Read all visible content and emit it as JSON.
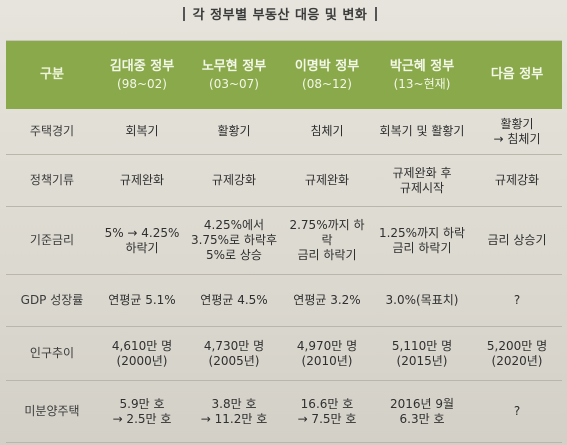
{
  "title": "각 정부별 부동산 대응 및 변화",
  "headers": [
    {
      "name": "구분",
      "sub": ""
    },
    {
      "name": "김대중 정부",
      "sub": "(98~02)"
    },
    {
      "name": "노무현 정부",
      "sub": "(03~07)"
    },
    {
      "name": "이명박 정부",
      "sub": "(08~12)"
    },
    {
      "name": "박근혜 정부",
      "sub": "(13~현재)"
    },
    {
      "name": "다음 정부",
      "sub": ""
    }
  ],
  "rows": [
    {
      "label": "주택경기",
      "cells": [
        "회복기",
        "활황기",
        "침체기",
        "회복기 및 활황기",
        "활황기\n→ 침체기"
      ]
    },
    {
      "label": "정책기류",
      "cells": [
        "규제완화",
        "규제강화",
        "규제완화",
        "규제완화 후\n규제시작",
        "규제강화"
      ]
    },
    {
      "label": "기준금리",
      "cells": [
        "5% → 4.25%\n하락기",
        "4.25%에서\n3.75%로 하락후\n5%로 상승",
        "2.75%까지 하락\n금리 하락기",
        "1.25%까지 하락\n금리 하락기",
        "금리 상승기"
      ]
    },
    {
      "label": "GDP 성장률",
      "cells": [
        "연평균 5.1%",
        "연평균 4.5%",
        "연평균 3.2%",
        "3.0%(목표치)",
        "?"
      ]
    },
    {
      "label": "인구추이",
      "cells": [
        "4,610만 명\n(2000년)",
        "4,730만 명\n(2005년)",
        "4,970만 명\n(2010년)",
        "5,110만 명\n(2015년)",
        "5,200만 명\n(2020년)"
      ]
    },
    {
      "label": "미분양주택",
      "cells": [
        "5.9만 호\n→ 2.5만 호",
        "3.8만 호\n→ 11.2만 호",
        "16.6만 호\n→ 7.5만 호",
        "2016년 9월\n6.3만 호",
        "?"
      ]
    }
  ]
}
